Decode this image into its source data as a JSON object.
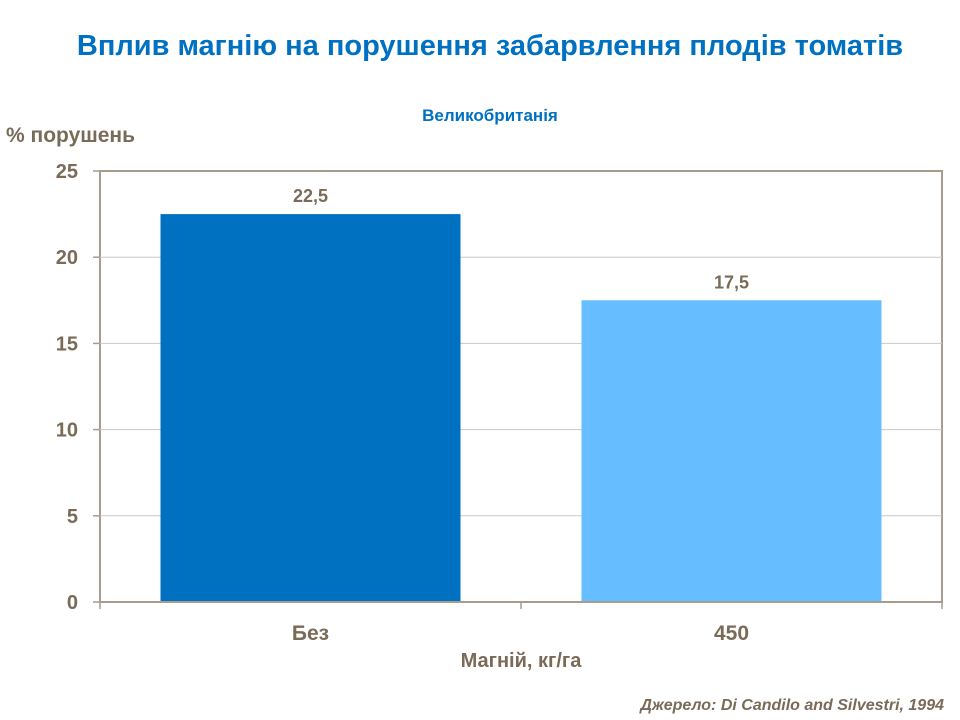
{
  "chart_data": {
    "type": "bar",
    "title": "Вплив магнію на порушення забарвлення плодів томатів",
    "subtitle": "Великобританія",
    "ylabel": "% порушень",
    "xlabel": "Магній, кг/га",
    "categories": [
      "Без",
      "450"
    ],
    "values": [
      22.5,
      17.5
    ],
    "data_labels": [
      "22,5",
      "17,5"
    ],
    "bar_colors": [
      "#0070c0",
      "#66bdff"
    ],
    "ylim": [
      0,
      25
    ],
    "yticks": [
      0,
      5,
      10,
      15,
      20,
      25
    ],
    "grid": true,
    "legend": "none"
  },
  "source": "Джерело: Di Candilo and Silvestri, 1994",
  "colors": {
    "title": "#0070c0",
    "text": "#7a6a58",
    "axis": "#a89c8e",
    "grid": "#c8c8c8"
  }
}
